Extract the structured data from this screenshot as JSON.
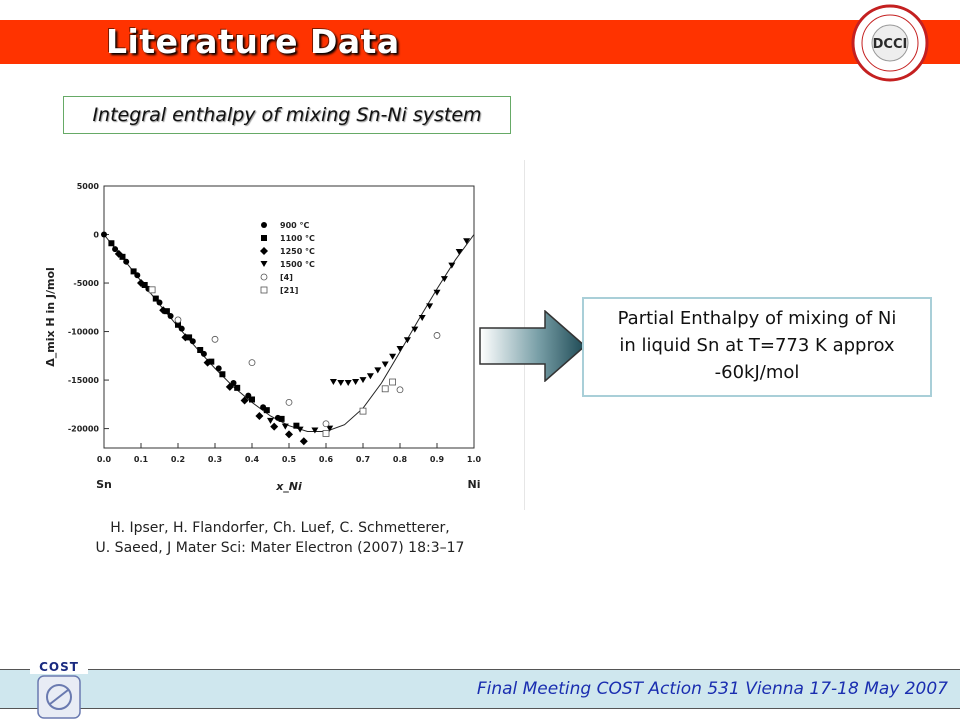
{
  "slide": {
    "title": "Literature Data",
    "subtitle": "Integral enthalpy of mixing Sn-Ni system",
    "citation_line1": "H. Ipser, H. Flandorfer, Ch. Luef, C. Schmetterer,",
    "citation_line2": "U. Saeed, J Mater Sci: Mater Electron (2007) 18:3–17",
    "note_line1": "Partial Enthalpy of mixing of Ni",
    "note_line2": "in liquid Sn  at T=773 K approx",
    "note_line3": "-60kJ/mol",
    "footer": "Final Meeting COST Action 531 Vienna 17-18 May 2007",
    "cost_logo_text": "COST",
    "dcci_logo_text": "DCCI"
  },
  "colors": {
    "header": "#ff3300",
    "footer_bg": "#cfe7ee",
    "footer_text": "#1a2eb0",
    "note_border": "#a9cfd8",
    "subtitle_border": "#66aa66"
  },
  "chart_data": {
    "type": "scatter",
    "xlabel": "x_Ni",
    "ylabel": "Δ_mix H in J/mol",
    "x_end_labels": [
      "Sn",
      "Ni"
    ],
    "xlim": [
      0.0,
      1.0
    ],
    "ylim": [
      -22000,
      5000
    ],
    "x_ticks": [
      "0.0",
      "0.1",
      "0.2",
      "0.3",
      "0.4",
      "0.5",
      "0.6",
      "0.7",
      "0.8",
      "0.9",
      "1.0"
    ],
    "y_ticks": [
      "5000",
      "0",
      "-5000",
      "-10000",
      "-15000",
      "-20000"
    ],
    "y_tick_values": [
      5000,
      0,
      -5000,
      -10000,
      -15000,
      -20000
    ],
    "series": [
      {
        "name": "900 °C",
        "marker": "circle-filled",
        "x": [
          0.0,
          0.03,
          0.06,
          0.09,
          0.12,
          0.15,
          0.18,
          0.21,
          0.24,
          0.27,
          0.31,
          0.35,
          0.39,
          0.43,
          0.47
        ],
        "y": [
          0,
          -1500,
          -2800,
          -4200,
          -5600,
          -7000,
          -8400,
          -9700,
          -11000,
          -12300,
          -13800,
          -15300,
          -16600,
          -17800,
          -18900
        ]
      },
      {
        "name": "1100 °C",
        "marker": "square-filled",
        "x": [
          0.02,
          0.05,
          0.08,
          0.11,
          0.14,
          0.17,
          0.2,
          0.23,
          0.26,
          0.29,
          0.32,
          0.36,
          0.4,
          0.44,
          0.48,
          0.52
        ],
        "y": [
          -900,
          -2300,
          -3800,
          -5200,
          -6600,
          -7900,
          -9300,
          -10600,
          -11900,
          -13100,
          -14400,
          -15800,
          -17000,
          -18100,
          -19000,
          -19700
        ]
      },
      {
        "name": "1250 °C",
        "marker": "diamond-filled",
        "x": [
          0.04,
          0.1,
          0.16,
          0.22,
          0.28,
          0.34,
          0.38,
          0.42,
          0.46,
          0.5,
          0.54
        ],
        "y": [
          -2000,
          -5000,
          -7800,
          -10600,
          -13200,
          -15700,
          -17100,
          -18700,
          -19800,
          -20600,
          -21300
        ]
      },
      {
        "name": "1500 °C",
        "marker": "triangle-down-filled",
        "x": [
          0.45,
          0.49,
          0.53,
          0.57,
          0.61,
          0.62,
          0.64,
          0.66,
          0.68,
          0.7,
          0.72,
          0.74,
          0.76,
          0.78,
          0.8,
          0.82,
          0.84,
          0.86,
          0.88,
          0.9,
          0.92,
          0.94,
          0.96,
          0.98
        ],
        "y": [
          -19200,
          -19800,
          -20100,
          -20200,
          -20000,
          -15200,
          -15300,
          -15300,
          -15200,
          -15000,
          -14600,
          -14000,
          -13400,
          -12600,
          -11800,
          -10900,
          -9800,
          -8600,
          -7400,
          -6000,
          -4600,
          -3200,
          -1800,
          -700
        ]
      },
      {
        "name": "[4]",
        "marker": "circle-open",
        "x": [
          0.2,
          0.3,
          0.4,
          0.5,
          0.6,
          0.8,
          0.9
        ],
        "y": [
          -8800,
          -10800,
          -13200,
          -17300,
          -19500,
          -16000,
          -10400
        ]
      },
      {
        "name": "[21]",
        "marker": "square-open",
        "x": [
          0.13,
          0.6,
          0.7,
          0.76,
          0.78
        ],
        "y": [
          -5700,
          -20500,
          -18200,
          -15900,
          -15200
        ]
      },
      {
        "name": "fit",
        "marker": "line",
        "x": [
          0.0,
          0.05,
          0.1,
          0.15,
          0.2,
          0.25,
          0.3,
          0.35,
          0.4,
          0.45,
          0.5,
          0.55,
          0.6,
          0.65,
          0.7,
          0.75,
          0.8,
          0.85,
          0.9,
          0.95,
          1.0
        ],
        "y": [
          0,
          -2400,
          -4800,
          -7200,
          -9500,
          -11700,
          -13800,
          -15700,
          -17300,
          -18700,
          -19700,
          -20300,
          -20300,
          -19600,
          -17900,
          -15300,
          -12100,
          -8800,
          -5600,
          -2600,
          0
        ]
      }
    ]
  }
}
